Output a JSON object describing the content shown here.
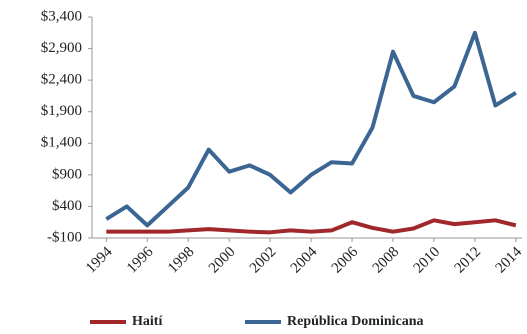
{
  "chart_data": {
    "type": "line",
    "x": [
      1994,
      1995,
      1996,
      1997,
      1998,
      1999,
      2000,
      2001,
      2002,
      2003,
      2004,
      2005,
      2006,
      2007,
      2008,
      2009,
      2010,
      2011,
      2012,
      2013,
      2014
    ],
    "series": [
      {
        "name": "Haití",
        "color": "#a0282a",
        "values": [
          0,
          0,
          0,
          0,
          20,
          40,
          20,
          0,
          -10,
          20,
          0,
          20,
          150,
          60,
          0,
          50,
          180,
          120,
          150,
          180,
          100
        ]
      },
      {
        "name": "República Dominicana",
        "color": "#3b6592",
        "values": [
          200,
          400,
          100,
          400,
          700,
          1300,
          950,
          1050,
          900,
          620,
          900,
          1100,
          1080,
          1650,
          2850,
          2150,
          2050,
          2300,
          3150,
          2000,
          2200
        ]
      }
    ],
    "xlim": [
      1993.3,
      2014.3
    ],
    "xticks": [
      1994,
      1996,
      1998,
      2000,
      2002,
      2004,
      2006,
      2008,
      2010,
      2012,
      2014
    ],
    "ylim": [
      -100,
      3400
    ],
    "yticks": [
      {
        "value": -100,
        "label": "-$100"
      },
      {
        "value": 400,
        "label": "$400"
      },
      {
        "value": 900,
        "label": "$900"
      },
      {
        "value": 1400,
        "label": "$1,400"
      },
      {
        "value": 1900,
        "label": "$1,900"
      },
      {
        "value": 2400,
        "label": "$2,400"
      },
      {
        "value": 2900,
        "label": "$2,900"
      },
      {
        "value": 3400,
        "label": "$3,400"
      }
    ],
    "legend": "bottom"
  }
}
